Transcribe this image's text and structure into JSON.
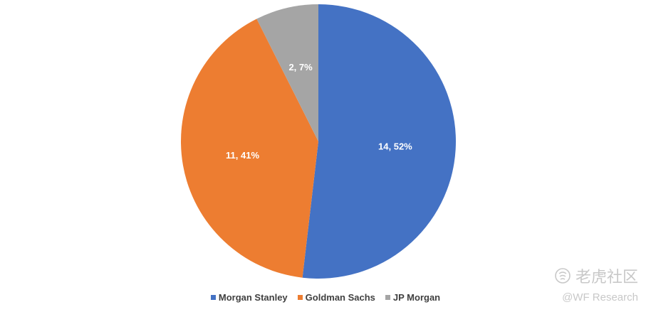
{
  "chart_data": {
    "type": "pie",
    "slices": [
      {
        "name": "Morgan Stanley",
        "value": 14,
        "percent": 52,
        "label": "14, 52%",
        "color": "#4472c4"
      },
      {
        "name": "Goldman Sachs",
        "value": 11,
        "percent": 41,
        "label": "11, 41%",
        "color": "#ed7d31"
      },
      {
        "name": "JP Morgan",
        "value": 2,
        "percent": 7,
        "label": "2, 7%",
        "color": "#a5a5a5"
      }
    ],
    "start_angle": "12 o'clock",
    "direction": "clockwise",
    "legend": {
      "position": "bottom",
      "items": [
        "Morgan Stanley",
        "Goldman Sachs",
        "JP Morgan"
      ]
    }
  },
  "watermark": {
    "brand": "老虎社区",
    "handle": "@WF Research",
    "icon": "tiger-logo-icon"
  }
}
